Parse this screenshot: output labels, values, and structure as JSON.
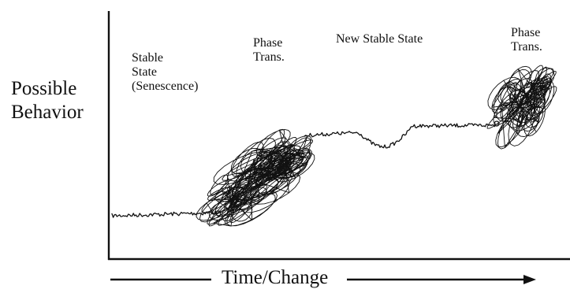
{
  "axes": {
    "y_label_line1": "Possible",
    "y_label_line2": "Behavior",
    "x_label": "Time/Change"
  },
  "regions": {
    "stable": {
      "line1": "Stable",
      "line2": "State",
      "line3": "(Senescence)"
    },
    "phase1": {
      "line1": "Phase",
      "line2": "Trans."
    },
    "new_stable": {
      "line1": "New Stable State"
    },
    "phase2": {
      "line1": "Phase",
      "line2": "Trans."
    }
  },
  "colors": {
    "ink": "#111111",
    "background": "#ffffff"
  }
}
